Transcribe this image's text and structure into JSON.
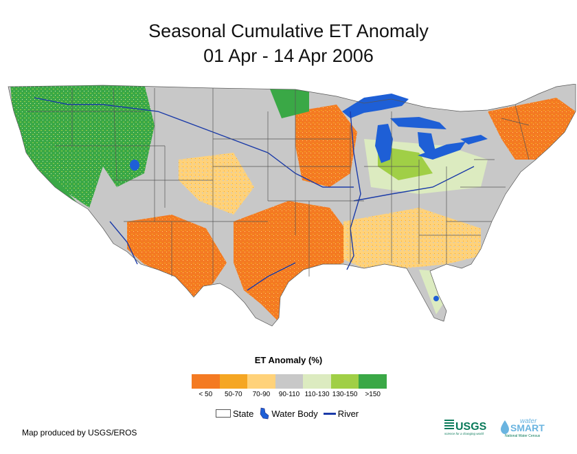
{
  "title": {
    "line1": "Seasonal Cumulative ET Anomaly",
    "line2": "01 Apr - 14 Apr 2006"
  },
  "legend": {
    "title": "ET Anomaly (%)",
    "classes": [
      {
        "label": "< 50",
        "color": "#f47a22"
      },
      {
        "label": "50-70",
        "color": "#f5a623"
      },
      {
        "label": "70-90",
        "color": "#ffd27a"
      },
      {
        "label": "90-110",
        "color": "#c8c8c8"
      },
      {
        "label": "110-130",
        "color": "#dcebc0"
      },
      {
        "label": "130-150",
        "color": "#a0cf46"
      },
      {
        "label": ">150",
        "color": "#3aa846"
      }
    ]
  },
  "map_legend": {
    "state_label": "State",
    "water_label": "Water Body",
    "river_label": "River"
  },
  "credit": "Map produced by USGS/EROS",
  "logos": {
    "usgs": "USGS",
    "usgs_tagline": "science for a changing world",
    "water_top": "water",
    "water_main": "SMART",
    "water_sub": "National Water Census"
  },
  "colors": {
    "water": "#1e5fd6",
    "river": "#1a3aa8",
    "state_border": "#555555"
  }
}
